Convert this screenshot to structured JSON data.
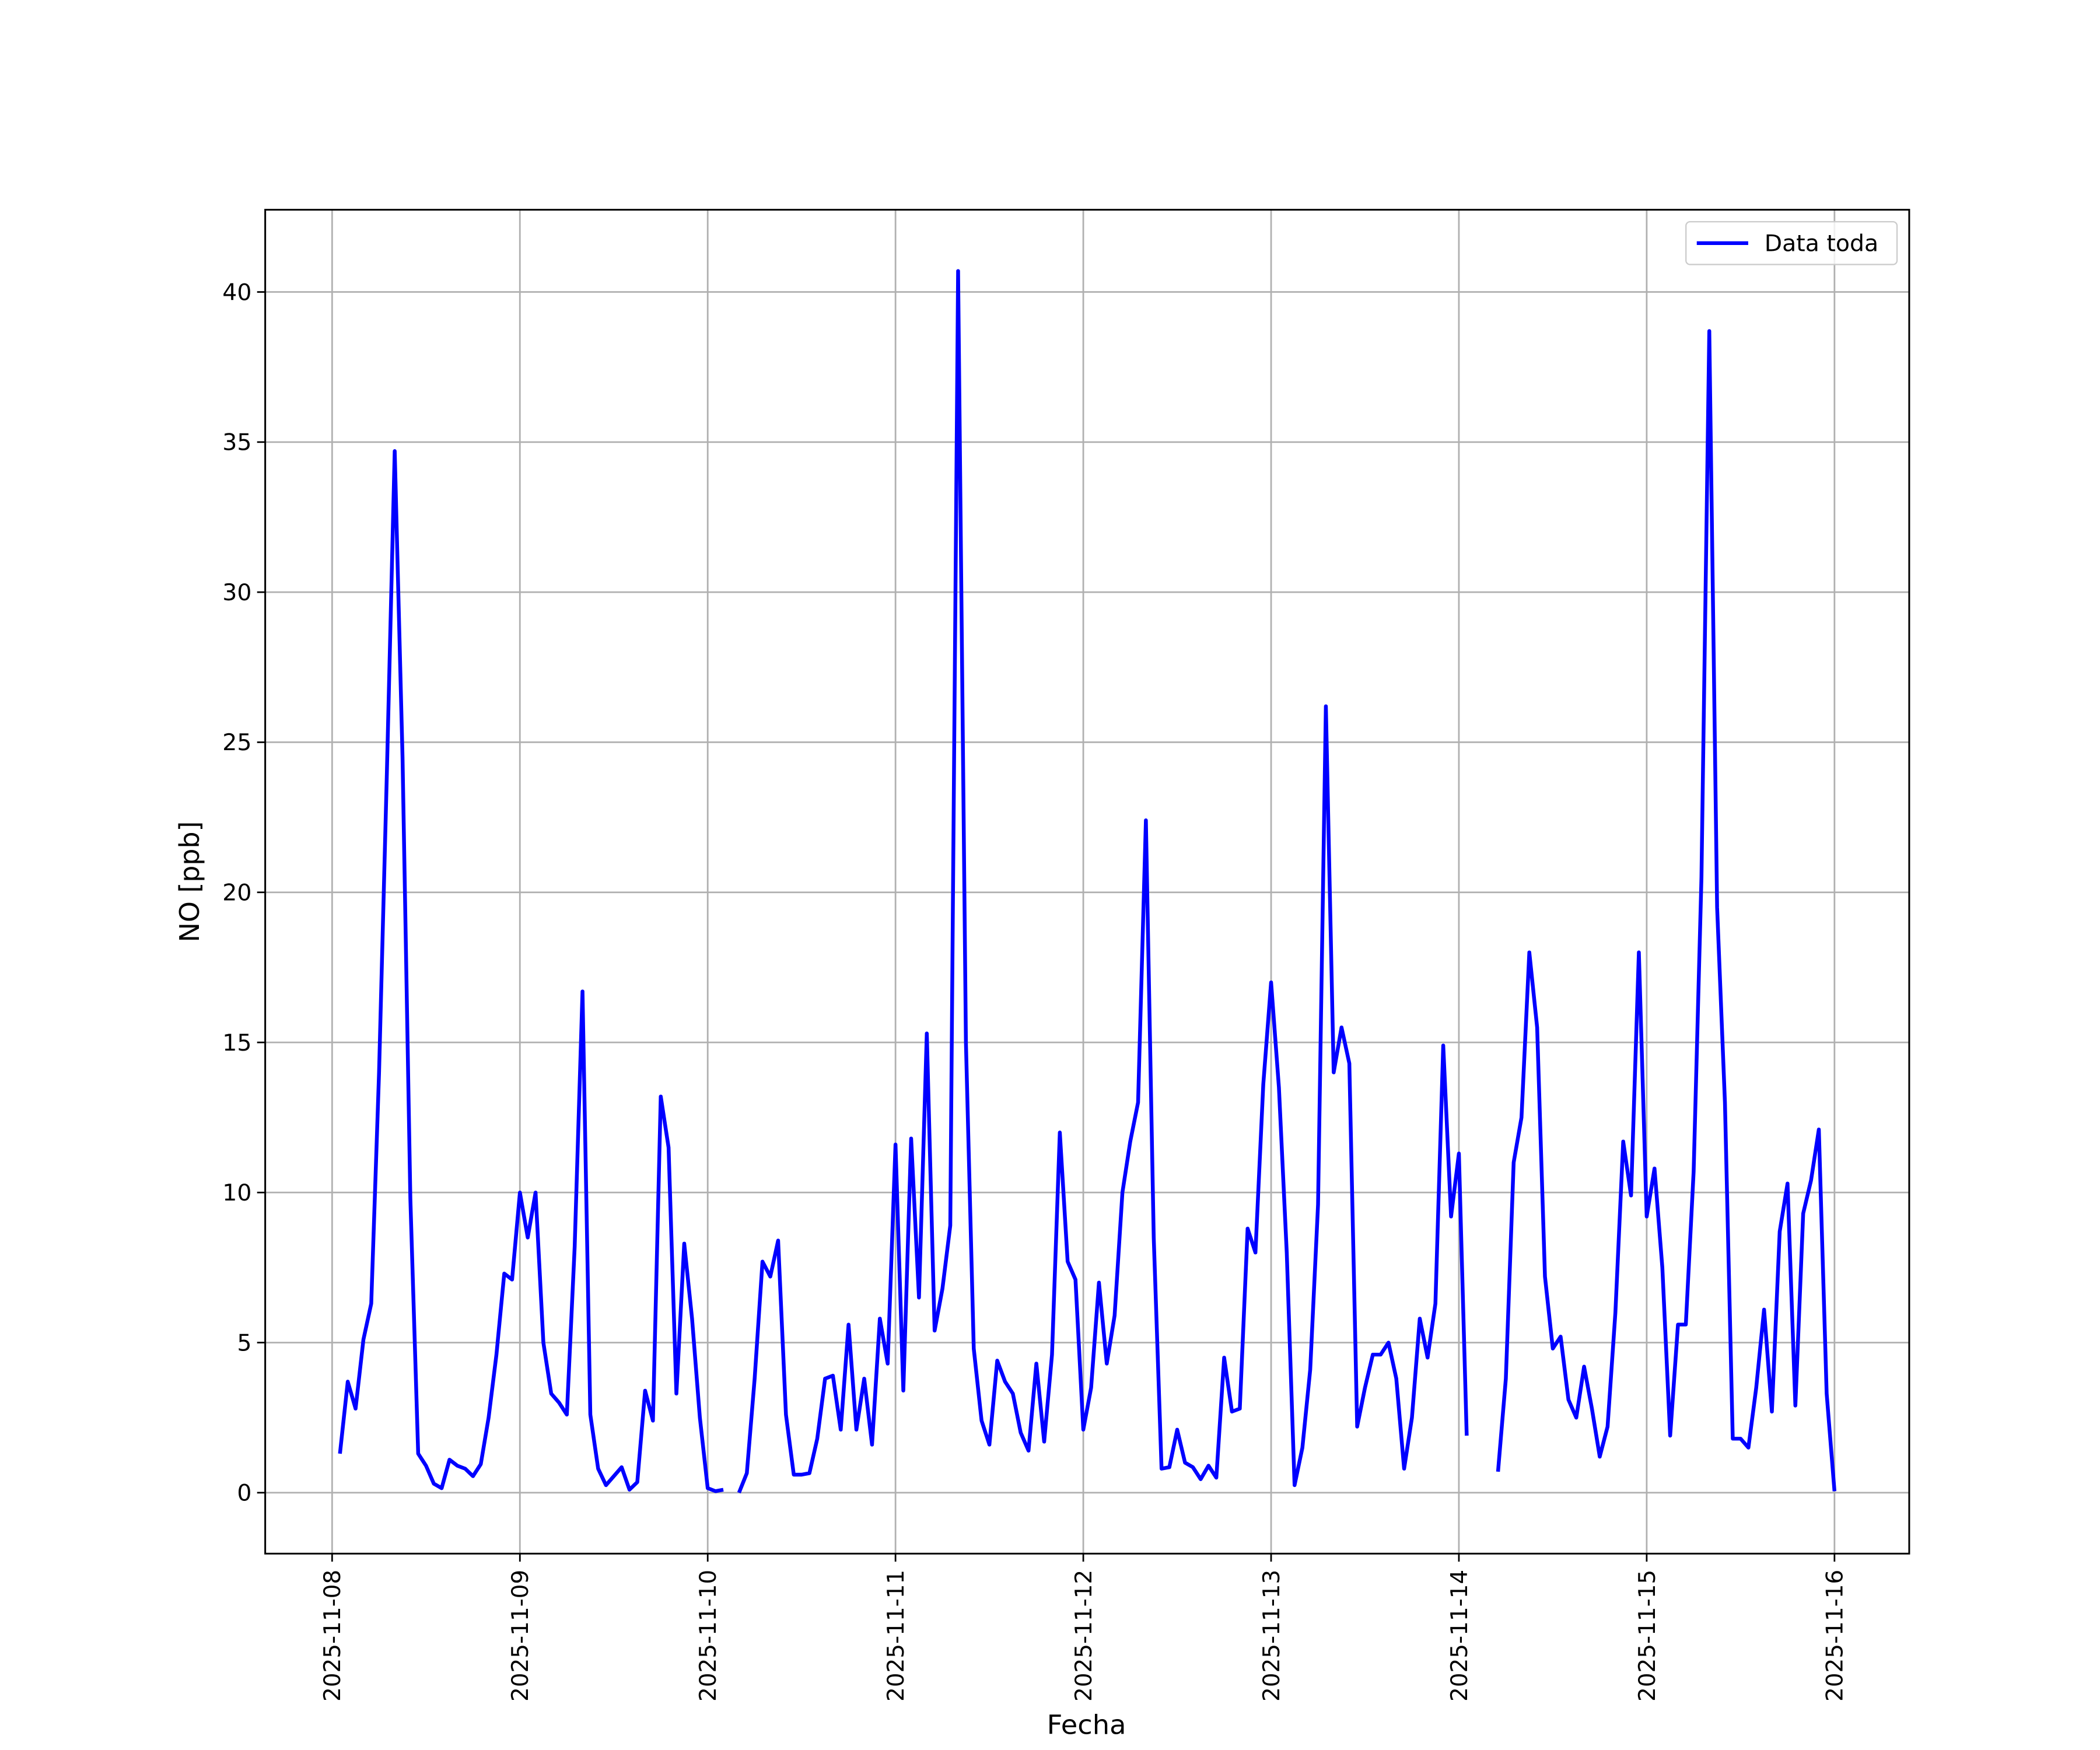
{
  "chart_data": {
    "type": "line",
    "xlabel": "Fecha",
    "ylabel": "NO [ppb]",
    "x": [
      "2025-11-08 01:00",
      "2025-11-08 02:00",
      "2025-11-08 03:00",
      "2025-11-08 04:00",
      "2025-11-08 05:00",
      "2025-11-08 06:00",
      "2025-11-08 07:00",
      "2025-11-08 08:00",
      "2025-11-08 09:00",
      "2025-11-08 10:00",
      "2025-11-08 11:00",
      "2025-11-08 12:00",
      "2025-11-08 13:00",
      "2025-11-08 14:00",
      "2025-11-08 15:00",
      "2025-11-08 16:00",
      "2025-11-08 17:00",
      "2025-11-08 18:00",
      "2025-11-08 19:00",
      "2025-11-08 20:00",
      "2025-11-08 21:00",
      "2025-11-08 22:00",
      "2025-11-08 23:00",
      "2025-11-09 00:00",
      "2025-11-09 01:00",
      "2025-11-09 02:00",
      "2025-11-09 03:00",
      "2025-11-09 04:00",
      "2025-11-09 05:00",
      "2025-11-09 06:00",
      "2025-11-09 07:00",
      "2025-11-09 08:00",
      "2025-11-09 09:00",
      "2025-11-09 10:00",
      "2025-11-09 11:00",
      "2025-11-09 12:00",
      "2025-11-09 13:00",
      "2025-11-09 14:00",
      "2025-11-09 15:00",
      "2025-11-09 16:00",
      "2025-11-09 17:00",
      "2025-11-09 18:00",
      "2025-11-09 19:00",
      "2025-11-09 20:00",
      "2025-11-09 21:00",
      "2025-11-09 22:00",
      "2025-11-09 23:00",
      "2025-11-10 00:00",
      "2025-11-10 01:00",
      "2025-11-10 02:00",
      "2025-11-10 03:00",
      "2025-11-10 04:00",
      "2025-11-10 05:00",
      "2025-11-10 06:00",
      "2025-11-10 07:00",
      "2025-11-10 08:00",
      "2025-11-10 09:00",
      "2025-11-10 10:00",
      "2025-11-10 11:00",
      "2025-11-10 12:00",
      "2025-11-10 13:00",
      "2025-11-10 14:00",
      "2025-11-10 15:00",
      "2025-11-10 16:00",
      "2025-11-10 17:00",
      "2025-11-10 18:00",
      "2025-11-10 19:00",
      "2025-11-10 20:00",
      "2025-11-10 21:00",
      "2025-11-10 22:00",
      "2025-11-10 23:00",
      "2025-11-11 00:00",
      "2025-11-11 01:00",
      "2025-11-11 02:00",
      "2025-11-11 03:00",
      "2025-11-11 04:00",
      "2025-11-11 05:00",
      "2025-11-11 06:00",
      "2025-11-11 07:00",
      "2025-11-11 08:00",
      "2025-11-11 09:00",
      "2025-11-11 10:00",
      "2025-11-11 11:00",
      "2025-11-11 12:00",
      "2025-11-11 13:00",
      "2025-11-11 14:00",
      "2025-11-11 15:00",
      "2025-11-11 16:00",
      "2025-11-11 17:00",
      "2025-11-11 18:00",
      "2025-11-11 19:00",
      "2025-11-11 20:00",
      "2025-11-11 21:00",
      "2025-11-11 22:00",
      "2025-11-11 23:00",
      "2025-11-12 00:00",
      "2025-11-12 01:00",
      "2025-11-12 02:00",
      "2025-11-12 03:00",
      "2025-11-12 04:00",
      "2025-11-12 05:00",
      "2025-11-12 06:00",
      "2025-11-12 07:00",
      "2025-11-12 08:00",
      "2025-11-12 09:00",
      "2025-11-12 10:00",
      "2025-11-12 11:00",
      "2025-11-12 12:00",
      "2025-11-12 13:00",
      "2025-11-12 14:00",
      "2025-11-12 15:00",
      "2025-11-12 16:00",
      "2025-11-12 17:00",
      "2025-11-12 18:00",
      "2025-11-12 19:00",
      "2025-11-12 20:00",
      "2025-11-12 21:00",
      "2025-11-12 22:00",
      "2025-11-12 23:00",
      "2025-11-13 00:00",
      "2025-11-13 01:00",
      "2025-11-13 02:00",
      "2025-11-13 03:00",
      "2025-11-13 04:00",
      "2025-11-13 05:00",
      "2025-11-13 06:00",
      "2025-11-13 07:00",
      "2025-11-13 08:00",
      "2025-11-13 09:00",
      "2025-11-13 10:00",
      "2025-11-13 11:00",
      "2025-11-13 12:00",
      "2025-11-13 13:00",
      "2025-11-13 14:00",
      "2025-11-13 15:00",
      "2025-11-13 16:00",
      "2025-11-13 17:00",
      "2025-11-13 18:00",
      "2025-11-13 19:00",
      "2025-11-13 20:00",
      "2025-11-13 21:00",
      "2025-11-13 22:00",
      "2025-11-13 23:00",
      "2025-11-14 00:00",
      "2025-11-14 01:00",
      "2025-11-14 02:00",
      "2025-11-14 03:00",
      "2025-11-14 04:00",
      "2025-11-14 05:00",
      "2025-11-14 06:00",
      "2025-11-14 07:00",
      "2025-11-14 08:00",
      "2025-11-14 09:00",
      "2025-11-14 10:00",
      "2025-11-14 11:00",
      "2025-11-14 12:00",
      "2025-11-14 13:00",
      "2025-11-14 14:00",
      "2025-11-14 15:00",
      "2025-11-14 16:00",
      "2025-11-14 17:00",
      "2025-11-14 18:00",
      "2025-11-14 19:00",
      "2025-11-14 20:00",
      "2025-11-14 21:00",
      "2025-11-14 22:00",
      "2025-11-14 23:00",
      "2025-11-15 00:00",
      "2025-11-15 01:00",
      "2025-11-15 02:00",
      "2025-11-15 03:00",
      "2025-11-15 04:00",
      "2025-11-15 05:00",
      "2025-11-15 06:00",
      "2025-11-15 07:00",
      "2025-11-15 08:00",
      "2025-11-15 09:00",
      "2025-11-15 10:00",
      "2025-11-15 11:00",
      "2025-11-15 12:00",
      "2025-11-15 13:00",
      "2025-11-15 14:00",
      "2025-11-15 15:00",
      "2025-11-15 16:00",
      "2025-11-15 17:00",
      "2025-11-15 18:00",
      "2025-11-15 19:00",
      "2025-11-15 20:00",
      "2025-11-15 21:00",
      "2025-11-15 22:00",
      "2025-11-15 23:00",
      "2025-11-16 00:00"
    ],
    "series": [
      {
        "name": "Data toda",
        "color": "#0000ff",
        "values": [
          1.3,
          3.7,
          2.8,
          5.1,
          6.3,
          14,
          24,
          34.7,
          24.5,
          9.8,
          1.3,
          0.9,
          0.3,
          0.15,
          1.1,
          0.9,
          0.8,
          0.55,
          0.95,
          2.5,
          4.6,
          7.3,
          7.1,
          10.0,
          8.5,
          10.0,
          5.0,
          3.3,
          3.0,
          2.6,
          8.2,
          16.7,
          2.6,
          0.8,
          0.25,
          0.55,
          0.85,
          0.1,
          0.35,
          3.4,
          2.4,
          13.2,
          11.5,
          3.3,
          8.3,
          5.8,
          2.5,
          0.15,
          0.05,
          0.1,
          null,
          0.0,
          0.65,
          3.8,
          7.7,
          7.2,
          8.4,
          2.6,
          0.6,
          0.6,
          0.65,
          1.8,
          3.8,
          3.9,
          2.1,
          5.6,
          2.1,
          3.8,
          1.6,
          5.8,
          4.3,
          11.6,
          3.4,
          11.8,
          6.5,
          15.3,
          5.4,
          6.8,
          8.9,
          40.7,
          15.0,
          4.8,
          2.4,
          1.6,
          4.4,
          3.7,
          3.3,
          2.0,
          1.4,
          4.3,
          1.7,
          4.6,
          12.0,
          7.7,
          7.1,
          2.1,
          3.5,
          7.0,
          4.3,
          5.9,
          10.0,
          11.7,
          13.0,
          22.4,
          8.5,
          0.8,
          0.85,
          2.1,
          1.0,
          0.85,
          0.45,
          0.9,
          0.5,
          4.5,
          2.7,
          2.8,
          8.8,
          8.0,
          13.6,
          17.0,
          13.5,
          8.0,
          0.25,
          1.5,
          4.1,
          9.6,
          26.2,
          14.0,
          15.5,
          14.3,
          2.2,
          3.5,
          4.6,
          4.6,
          5.0,
          3.8,
          0.8,
          2.5,
          5.8,
          4.5,
          6.3,
          14.9,
          9.2,
          11.3,
          1.9,
          null,
          null,
          null,
          0.7,
          3.8,
          11.0,
          12.5,
          18.0,
          15.5,
          7.2,
          4.8,
          5.2,
          3.1,
          2.5,
          4.2,
          2.8,
          1.2,
          2.2,
          6.0,
          11.7,
          9.9,
          18.0,
          9.2,
          10.8,
          7.5,
          1.9,
          5.6,
          5.6,
          10.7,
          20.5,
          38.7,
          19.5,
          13.0,
          1.8,
          1.8,
          1.5,
          3.5,
          6.1,
          2.7,
          8.7,
          10.3,
          2.9,
          9.3,
          10.4,
          12.1,
          3.3,
          0.05
        ]
      }
    ],
    "xlim": [
      "2025-11-07 15:27",
      "2025-11-16 09:33"
    ],
    "xticks": [
      "2025-11-08",
      "2025-11-09",
      "2025-11-10",
      "2025-11-11",
      "2025-11-12",
      "2025-11-13",
      "2025-11-14",
      "2025-11-15",
      "2025-11-16"
    ],
    "ylim": [
      -2.03,
      42.74
    ],
    "yticks": [
      0,
      5,
      10,
      15,
      20,
      25,
      30,
      35,
      40
    ],
    "grid": true,
    "legend": "upper right"
  }
}
